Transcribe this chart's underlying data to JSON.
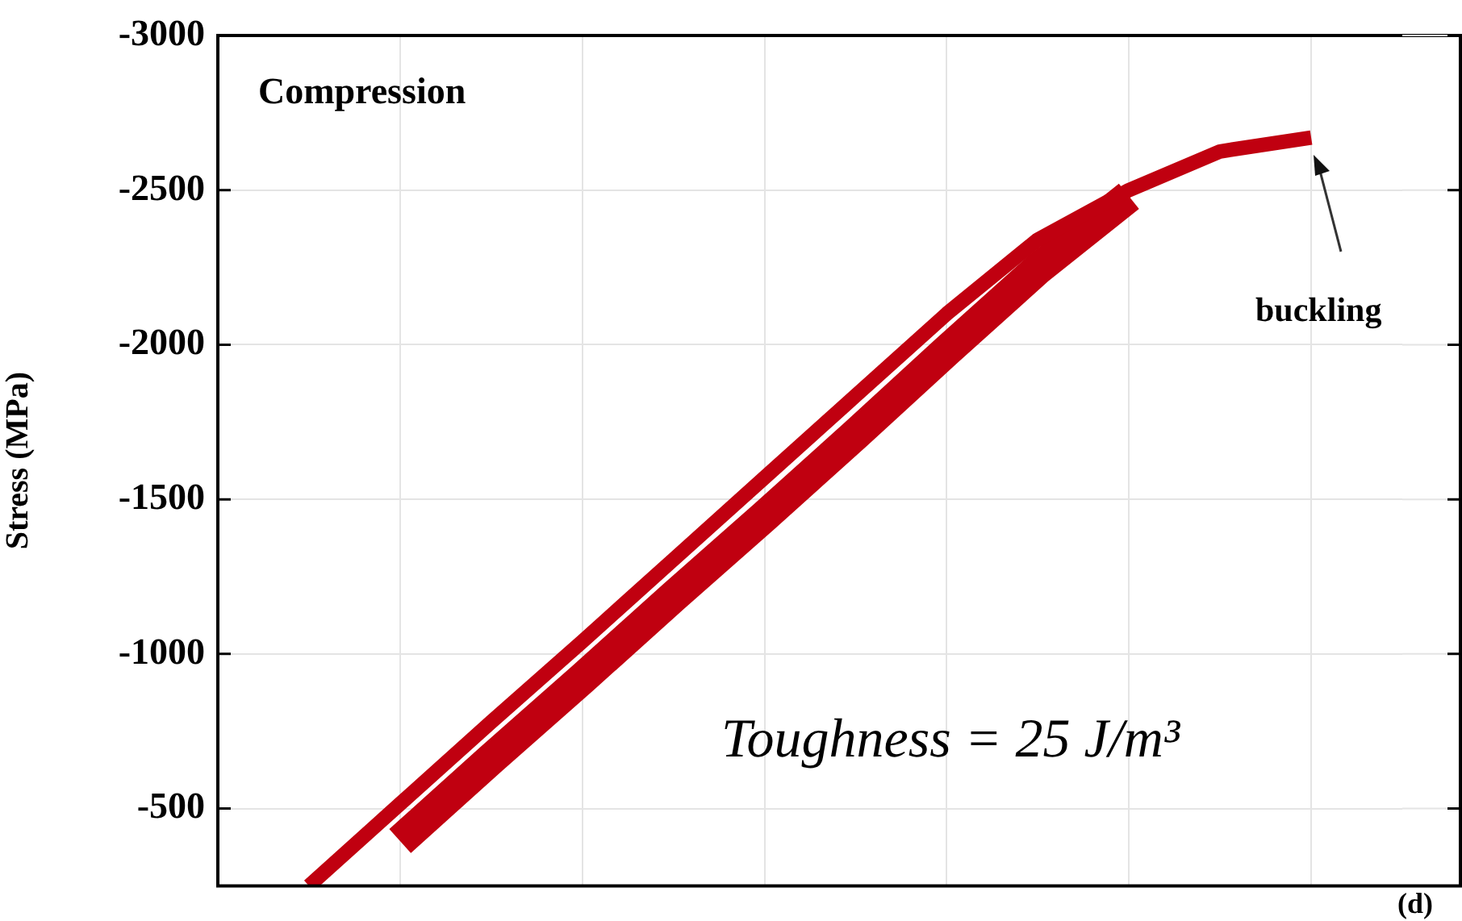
{
  "chart_data": {
    "type": "line",
    "ylabel": "Stress (MPa)",
    "annotations": [
      "Compression",
      "buckling",
      "Toughness = 25 J/m³",
      "(d)"
    ],
    "categories": [
      null,
      null,
      null,
      null,
      null,
      null,
      null,
      null,
      null,
      null,
      null,
      null,
      null,
      null
    ],
    "ylim": [
      -250,
      -3000
    ],
    "yticks": [
      -3000,
      -2500,
      -2000,
      -1500,
      -1000,
      -500
    ],
    "grid": true,
    "legend": false,
    "tick_labels": "y",
    "marker": "none",
    "line_style": "solid",
    "series": [
      {
        "color": "#c00010",
        "values": [
          null,
          -250,
          -515,
          -780,
          -1040,
          -1305,
          -1570,
          -1835,
          -2100,
          -2340,
          -2500,
          -2625,
          -2670,
          null
        ]
      },
      {
        "color": "#c00010",
        "values": [
          null,
          null,
          -395,
          -660,
          -920,
          -1185,
          -1445,
          -1710,
          -1980,
          -2245,
          -2480,
          null,
          null,
          null
        ]
      }
    ]
  }
}
